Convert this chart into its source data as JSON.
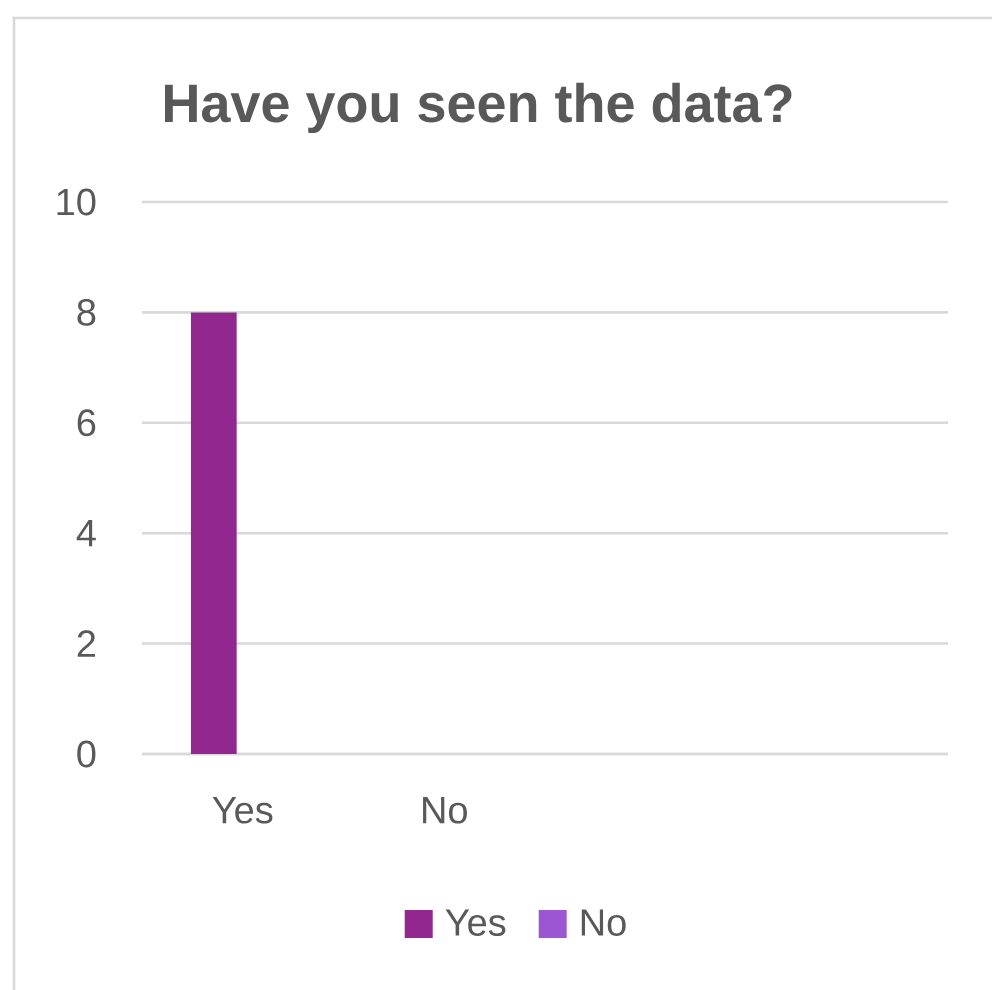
{
  "chart_data": {
    "type": "bar",
    "title": "Have you seen the data?",
    "categories": [
      "Yes",
      "No",
      null,
      null
    ],
    "series": [
      {
        "name": "Yes",
        "color": "#92278f",
        "values": [
          8,
          null,
          null,
          null
        ]
      },
      {
        "name": "No",
        "color": "#9b57d3",
        "values": [
          null,
          null,
          null,
          null
        ]
      }
    ],
    "ylim": [
      0,
      10
    ],
    "yticks": [
      0,
      2,
      4,
      6,
      8,
      10
    ],
    "grid": "y",
    "legend": "bottom"
  }
}
